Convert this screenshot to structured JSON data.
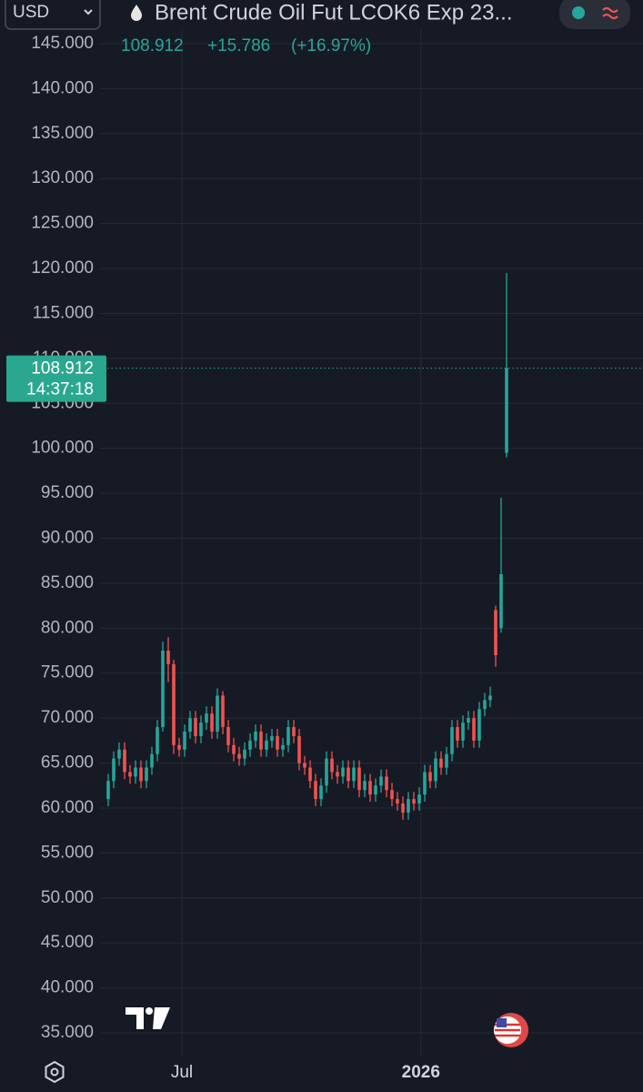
{
  "chart_data": {
    "type": "candlestick",
    "currency": "USD",
    "title": "Brent Crude Oil Fut LCOK6 Exp 23...",
    "legend": {
      "last": "108.912",
      "change": "+15.786",
      "change_percent": "(+16.97%)"
    },
    "countdown": "14:37:18",
    "up_color": "#26a69a",
    "down_color": "#ef5350",
    "grid": true,
    "xlim": [
      -1.5,
      98
    ],
    "xticks": [
      {
        "value": 13.5,
        "label": "Jul"
      },
      {
        "value": 57.3,
        "label": "2026"
      }
    ],
    "ylim": [
      35,
      145
    ],
    "yticks": [
      {
        "value": 35,
        "label": "35.000"
      },
      {
        "value": 40,
        "label": "40.000"
      },
      {
        "value": 45,
        "label": "45.000"
      },
      {
        "value": 50,
        "label": "50.000"
      },
      {
        "value": 55,
        "label": "55.000"
      },
      {
        "value": 60,
        "label": "60.000"
      },
      {
        "value": 65,
        "label": "65.000"
      },
      {
        "value": 70,
        "label": "70.000"
      },
      {
        "value": 75,
        "label": "75.000"
      },
      {
        "value": 80,
        "label": "80.000"
      },
      {
        "value": 85,
        "label": "85.000"
      },
      {
        "value": 90,
        "label": "90.000"
      },
      {
        "value": 95,
        "label": "95.000"
      },
      {
        "value": 100,
        "label": "100.000"
      },
      {
        "value": 105,
        "label": "105.000"
      },
      {
        "value": 110,
        "label": "110.000"
      },
      {
        "value": 115,
        "label": "115.000"
      },
      {
        "value": 120,
        "label": "120.000"
      },
      {
        "value": 125,
        "label": "125.000"
      },
      {
        "value": 130,
        "label": "130.000"
      },
      {
        "value": 135,
        "label": "135.000"
      },
      {
        "value": 140,
        "label": "140.000"
      },
      {
        "value": 145,
        "label": "145.000"
      }
    ],
    "open": [
      61.0,
      63.0,
      65.5,
      66.5,
      64.0,
      63.5,
      64.5,
      63.0,
      64.5,
      66.0,
      69.0,
      77.5,
      76.0,
      67.0,
      66.5,
      68.5,
      70.0,
      68.0,
      69.5,
      70.5,
      68.5,
      72.5,
      69.0,
      67.0,
      66.0,
      65.5,
      66.5,
      67.5,
      68.5,
      66.5,
      67.5,
      68.0,
      66.5,
      67.0,
      69.0,
      68.0,
      65.0,
      64.5,
      63.0,
      61.0,
      62.5,
      65.5,
      64.0,
      63.5,
      64.5,
      63.0,
      64.5,
      62.0,
      63.0,
      61.5,
      62.5,
      63.5,
      62.0,
      61.0,
      60.5,
      59.5,
      61.0,
      60.5,
      61.5,
      64.0,
      63.0,
      65.5,
      64.5,
      66.0,
      69.0,
      67.5,
      69.5,
      70.0,
      67.5,
      71.0,
      72.0,
      82.0,
      80.0,
      99.5
    ],
    "high": [
      63.8,
      66.3,
      67.3,
      67.3,
      64.8,
      65.3,
      65.3,
      65.3,
      66.8,
      69.8,
      78.5,
      79,
      76.5,
      67.8,
      69.3,
      70.8,
      70.8,
      70.3,
      71.3,
      71.3,
      73.3,
      73.0,
      69.8,
      67.8,
      66.8,
      67.3,
      68.3,
      69.3,
      69.3,
      68.3,
      68.8,
      68.8,
      67.8,
      69.8,
      69.8,
      68.8,
      65.8,
      65.3,
      63.8,
      63.3,
      66.3,
      66.3,
      64.8,
      65.3,
      65.3,
      65.3,
      65.3,
      63.8,
      63.8,
      63.3,
      64.3,
      64.3,
      62.8,
      61.8,
      61.3,
      61.8,
      61.8,
      62.3,
      64.8,
      64.8,
      66.3,
      66.3,
      66.8,
      69.8,
      69.8,
      70.3,
      70.8,
      70.8,
      71.8,
      72.8,
      73.5,
      82.5,
      94.5,
      119.5
    ],
    "low": [
      60.2,
      62.2,
      64.7,
      63.2,
      62.7,
      62.7,
      62.2,
      62.2,
      63.7,
      65.2,
      68.5,
      74,
      66,
      65.7,
      65.7,
      67.7,
      67.2,
      67.2,
      68.7,
      67.7,
      67.7,
      68.2,
      66.2,
      65.2,
      64.7,
      64.7,
      65.7,
      66.7,
      65.7,
      65.7,
      66.7,
      65.7,
      65.7,
      66.2,
      67.2,
      64.2,
      63.7,
      62.2,
      60.2,
      60.2,
      61.7,
      63.2,
      62.7,
      62.7,
      62.2,
      62.2,
      61.2,
      61.2,
      60.7,
      60.7,
      61.7,
      61.2,
      60.2,
      59.7,
      58.7,
      58.7,
      59.7,
      59.7,
      60.7,
      62.2,
      62.2,
      63.7,
      63.7,
      65.2,
      66.7,
      66.7,
      68.7,
      66.7,
      66.7,
      70.2,
      71.2,
      75.7,
      79.5,
      99
    ],
    "close": [
      63.0,
      65.5,
      66.5,
      64.0,
      63.5,
      64.5,
      63.0,
      64.5,
      66.0,
      69.0,
      77.5,
      76.0,
      67.0,
      66.5,
      68.5,
      70.0,
      68.0,
      69.5,
      70.5,
      68.5,
      72.5,
      69.0,
      67.0,
      66.0,
      65.5,
      66.5,
      67.5,
      68.5,
      66.5,
      67.5,
      68.0,
      66.5,
      67.0,
      69.0,
      68.0,
      65.0,
      64.5,
      63.0,
      61.0,
      62.5,
      65.5,
      64.0,
      63.5,
      64.5,
      63.0,
      64.5,
      62.0,
      63.0,
      61.5,
      62.5,
      63.5,
      62.0,
      61.0,
      60.5,
      59.5,
      61.0,
      60.5,
      61.5,
      64.0,
      63.0,
      65.5,
      64.5,
      66.0,
      69.0,
      67.5,
      69.5,
      70.0,
      67.5,
      71.0,
      72.0,
      72.5,
      77.0,
      86.0,
      108.912
    ]
  }
}
